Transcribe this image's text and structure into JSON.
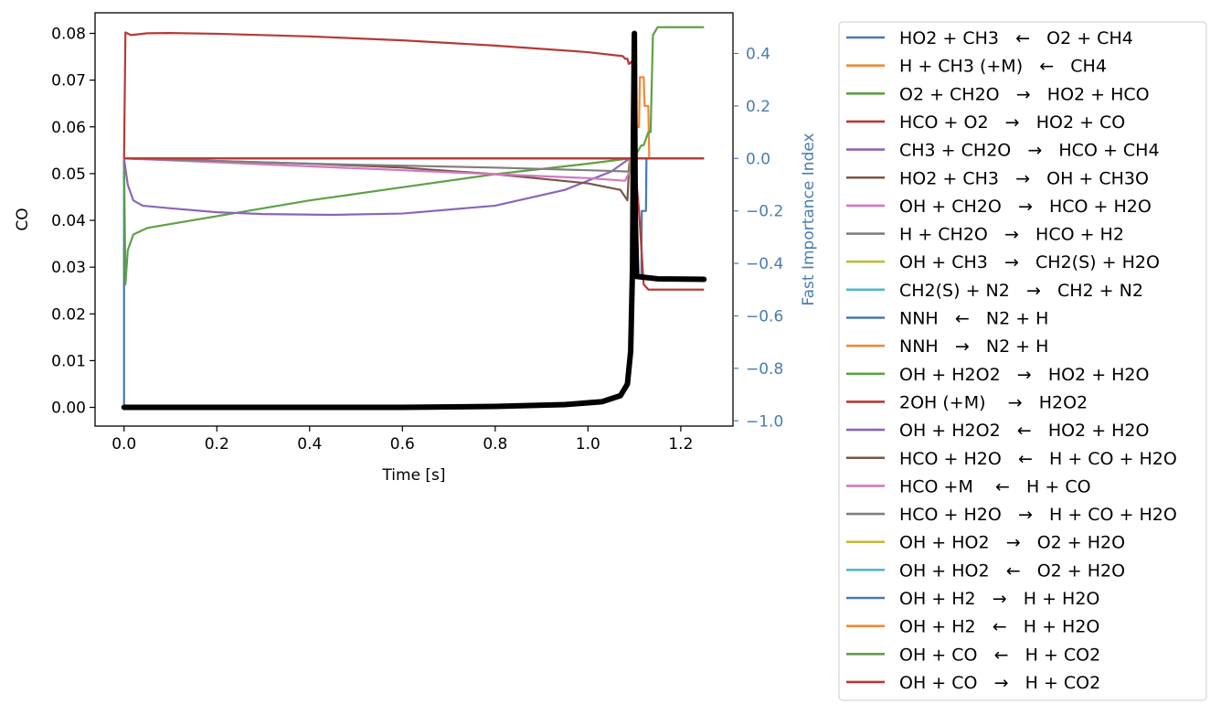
{
  "chart_data": {
    "type": "line",
    "xlabel": "Time [s]",
    "ylabel_left": "CO",
    "ylabel_right": "Fast Importance Index",
    "right_axis_color": "#4a7cb0",
    "xlim": [
      -0.0625,
      1.3125
    ],
    "ylim_left": [
      -0.004,
      0.0844
    ],
    "ylim_right": [
      -1.02,
      0.555
    ],
    "x_ticks": [
      {
        "value": 0.0,
        "label": "0.0"
      },
      {
        "value": 0.2,
        "label": "0.2"
      },
      {
        "value": 0.4,
        "label": "0.4"
      },
      {
        "value": 0.6,
        "label": "0.6"
      },
      {
        "value": 0.8,
        "label": "0.8"
      },
      {
        "value": 1.0,
        "label": "1.0"
      },
      {
        "value": 1.2,
        "label": "1.2"
      }
    ],
    "y_left_ticks": [
      {
        "value": 0.0,
        "label": "0.00"
      },
      {
        "value": 0.01,
        "label": "0.01"
      },
      {
        "value": 0.02,
        "label": "0.02"
      },
      {
        "value": 0.03,
        "label": "0.03"
      },
      {
        "value": 0.04,
        "label": "0.04"
      },
      {
        "value": 0.05,
        "label": "0.05"
      },
      {
        "value": 0.06,
        "label": "0.06"
      },
      {
        "value": 0.07,
        "label": "0.07"
      },
      {
        "value": 0.08,
        "label": "0.08"
      }
    ],
    "y_right_ticks": [
      {
        "value": 0.4,
        "label": "0.4"
      },
      {
        "value": 0.2,
        "label": "0.2"
      },
      {
        "value": 0.0,
        "label": "0.0"
      },
      {
        "value": -0.2,
        "label": "−0.2"
      },
      {
        "value": -0.4,
        "label": "−0.4"
      },
      {
        "value": -0.6,
        "label": "−0.6"
      },
      {
        "value": -0.8,
        "label": "−0.8"
      },
      {
        "value": -1.0,
        "label": "−1.0"
      }
    ],
    "co_series": {
      "name": "CO",
      "color": "#000000",
      "points": [
        [
          0,
          0
        ],
        [
          0.2,
          0
        ],
        [
          0.4,
          0
        ],
        [
          0.6,
          0
        ],
        [
          0.8,
          0.0002
        ],
        [
          0.95,
          0.0006
        ],
        [
          1.03,
          0.0012
        ],
        [
          1.07,
          0.0025
        ],
        [
          1.085,
          0.005
        ],
        [
          1.092,
          0.012
        ],
        [
          1.096,
          0.03
        ],
        [
          1.098,
          0.06
        ],
        [
          1.1,
          0.08
        ],
        [
          1.102,
          0.04
        ],
        [
          1.105,
          0.028
        ],
        [
          1.15,
          0.0275
        ],
        [
          1.25,
          0.0274
        ]
      ]
    },
    "series": [
      {
        "name": "HO2 + CH3   ←   O2 + CH4",
        "color": "#4878b2",
        "points": [
          [
            0,
            -0.95
          ],
          [
            0,
            0
          ],
          [
            1.09,
            0
          ],
          [
            1.1,
            0
          ],
          [
            1.101,
            -0.1
          ],
          [
            1.103,
            -0.45
          ],
          [
            1.115,
            -0.45
          ],
          [
            1.116,
            -0.2
          ],
          [
            1.125,
            -0.2
          ],
          [
            1.126,
            0
          ],
          [
            1.25,
            0
          ]
        ]
      },
      {
        "name": "H + CH3 (+M)   ←   CH4",
        "color": "#ef8a36",
        "points": [
          [
            0,
            0
          ],
          [
            1.09,
            0
          ],
          [
            1.098,
            0
          ],
          [
            1.1,
            0.12
          ],
          [
            1.11,
            0.12
          ],
          [
            1.112,
            0.31
          ],
          [
            1.12,
            0.31
          ],
          [
            1.122,
            0.2
          ],
          [
            1.13,
            0.2
          ],
          [
            1.132,
            0
          ],
          [
            1.25,
            0
          ]
        ]
      },
      {
        "name": "O2 + CH2O   →   HO2 + HCO",
        "color": "#5ea045",
        "points": [
          [
            0,
            0
          ],
          [
            0.003,
            -0.48
          ],
          [
            0.008,
            -0.35
          ],
          [
            0.02,
            -0.29
          ],
          [
            0.05,
            -0.265
          ],
          [
            0.2,
            -0.22
          ],
          [
            0.4,
            -0.16
          ],
          [
            0.6,
            -0.11
          ],
          [
            0.8,
            -0.06
          ],
          [
            1.0,
            -0.02
          ],
          [
            1.09,
            0
          ],
          [
            1.1,
            0
          ],
          [
            1.105,
            0.02
          ],
          [
            1.115,
            0.05
          ],
          [
            1.12,
            0.05
          ],
          [
            1.13,
            0.1
          ],
          [
            1.135,
            0.1
          ],
          [
            1.14,
            0.47
          ],
          [
            1.15,
            0.5
          ],
          [
            1.25,
            0.5
          ]
        ]
      },
      {
        "name": "HCO + O2   →   HO2 + CO",
        "color": "#b63a35",
        "points": [
          [
            0,
            0
          ],
          [
            0.003,
            0.48
          ],
          [
            0.015,
            0.47
          ],
          [
            0.05,
            0.477
          ],
          [
            0.1,
            0.478
          ],
          [
            0.2,
            0.475
          ],
          [
            0.4,
            0.465
          ],
          [
            0.6,
            0.45
          ],
          [
            0.8,
            0.43
          ],
          [
            1.0,
            0.405
          ],
          [
            1.075,
            0.39
          ],
          [
            1.08,
            0.38
          ],
          [
            1.085,
            0.38
          ],
          [
            1.088,
            0.36
          ],
          [
            1.095,
            0.37
          ],
          [
            1.1,
            0.2
          ],
          [
            1.102,
            0.1
          ],
          [
            1.105,
            -0.1
          ],
          [
            1.11,
            -0.2
          ],
          [
            1.12,
            -0.48
          ],
          [
            1.13,
            -0.5
          ],
          [
            1.25,
            -0.5
          ]
        ]
      },
      {
        "name": "CH3 + CH2O   →   HCO + CH4",
        "color": "#8a66b8",
        "points": [
          [
            0,
            0
          ],
          [
            0.008,
            -0.1
          ],
          [
            0.02,
            -0.16
          ],
          [
            0.04,
            -0.18
          ],
          [
            0.1,
            -0.19
          ],
          [
            0.2,
            -0.205
          ],
          [
            0.3,
            -0.212
          ],
          [
            0.45,
            -0.215
          ],
          [
            0.6,
            -0.21
          ],
          [
            0.8,
            -0.18
          ],
          [
            0.95,
            -0.12
          ],
          [
            1.05,
            -0.05
          ],
          [
            1.09,
            0
          ],
          [
            1.25,
            0
          ]
        ]
      },
      {
        "name": "HO2 + CH3   →   OH + CH3O",
        "color": "#7a5548",
        "points": [
          [
            0,
            0
          ],
          [
            0.2,
            -0.01
          ],
          [
            0.4,
            -0.02
          ],
          [
            0.6,
            -0.035
          ],
          [
            0.8,
            -0.06
          ],
          [
            1.0,
            -0.095
          ],
          [
            1.07,
            -0.12
          ],
          [
            1.085,
            -0.16
          ],
          [
            1.088,
            -0.05
          ],
          [
            1.09,
            0
          ],
          [
            1.25,
            0
          ]
        ]
      },
      {
        "name": "OH + CH2O   →   HCO + H2O",
        "color": "#d377c2",
        "points": [
          [
            0,
            0
          ],
          [
            0.2,
            -0.015
          ],
          [
            0.4,
            -0.03
          ],
          [
            0.6,
            -0.045
          ],
          [
            0.8,
            -0.06
          ],
          [
            1.0,
            -0.075
          ],
          [
            1.08,
            -0.085
          ],
          [
            1.09,
            -0.05
          ],
          [
            1.095,
            0
          ],
          [
            1.25,
            0
          ]
        ]
      },
      {
        "name": "H + CH2O   →   HCO + H2",
        "color": "#808080",
        "points": [
          [
            0,
            0
          ],
          [
            0.4,
            -0.02
          ],
          [
            0.8,
            -0.035
          ],
          [
            1.0,
            -0.045
          ],
          [
            1.09,
            -0.05
          ],
          [
            1.1,
            0
          ],
          [
            1.25,
            0
          ]
        ]
      },
      {
        "name": "OH + CH3   →   CH2(S) + H2O",
        "color": "#bcbd3a",
        "points": [
          [
            0,
            0
          ],
          [
            1.09,
            0
          ],
          [
            1.095,
            -0.1
          ],
          [
            1.098,
            0
          ],
          [
            1.25,
            0
          ]
        ]
      },
      {
        "name": "CH2(S) + N2   →   CH2 + N2",
        "color": "#52b8c8",
        "points": [
          [
            0,
            0
          ],
          [
            1.25,
            0
          ]
        ]
      },
      {
        "name": "NNH   ←   N2 + H",
        "color": "#4878b2",
        "points": [
          [
            0,
            0
          ],
          [
            1.25,
            0
          ]
        ]
      },
      {
        "name": "NNH   →   N2 + H",
        "color": "#ef8a36",
        "points": [
          [
            0,
            0
          ],
          [
            1.25,
            0
          ]
        ]
      },
      {
        "name": "OH + H2O2   →   HO2 + H2O",
        "color": "#5ea045",
        "points": [
          [
            0,
            0
          ],
          [
            1.25,
            0
          ]
        ]
      },
      {
        "name": "2OH (+M)    →   H2O2",
        "color": "#b63a35",
        "points": [
          [
            0,
            0
          ],
          [
            1.25,
            0
          ]
        ]
      },
      {
        "name": "OH + H2O2   ←   HO2 + H2O",
        "color": "#8a66b8",
        "points": [
          [
            0,
            0
          ],
          [
            1.25,
            0
          ]
        ]
      },
      {
        "name": "HCO + H2O   ←   H + CO + H2O",
        "color": "#7a5548",
        "points": [
          [
            0,
            0
          ],
          [
            1.25,
            0
          ]
        ]
      },
      {
        "name": "HCO +M    ←   H + CO",
        "color": "#d377c2",
        "points": [
          [
            0,
            0
          ],
          [
            1.25,
            0
          ]
        ]
      },
      {
        "name": "HCO + H2O   →   H + CO + H2O",
        "color": "#808080",
        "points": [
          [
            0,
            0
          ],
          [
            1.25,
            0
          ]
        ]
      },
      {
        "name": "OH + HO2   →   O2 + H2O",
        "color": "#bcbd3a",
        "points": [
          [
            0,
            0
          ],
          [
            1.25,
            0
          ]
        ]
      },
      {
        "name": "OH + HO2   ←   O2 + H2O",
        "color": "#52b8c8",
        "points": [
          [
            0,
            0
          ],
          [
            1.25,
            0
          ]
        ]
      },
      {
        "name": "OH + H2   →   H + H2O",
        "color": "#4878b2",
        "points": [
          [
            0,
            0
          ],
          [
            1.25,
            0
          ]
        ]
      },
      {
        "name": "OH + H2   ←   H + H2O",
        "color": "#ef8a36",
        "points": [
          [
            0,
            0
          ],
          [
            1.25,
            0
          ]
        ]
      },
      {
        "name": "OH + CO   ←   H + CO2",
        "color": "#5ea045",
        "points": [
          [
            0,
            0
          ],
          [
            1.25,
            0
          ]
        ]
      },
      {
        "name": "OH + CO   →   H + CO2",
        "color": "#b63a35",
        "points": [
          [
            0,
            0
          ],
          [
            1.1,
            0
          ],
          [
            1.25,
            0
          ]
        ]
      }
    ],
    "legend_placement": "outside-right"
  }
}
